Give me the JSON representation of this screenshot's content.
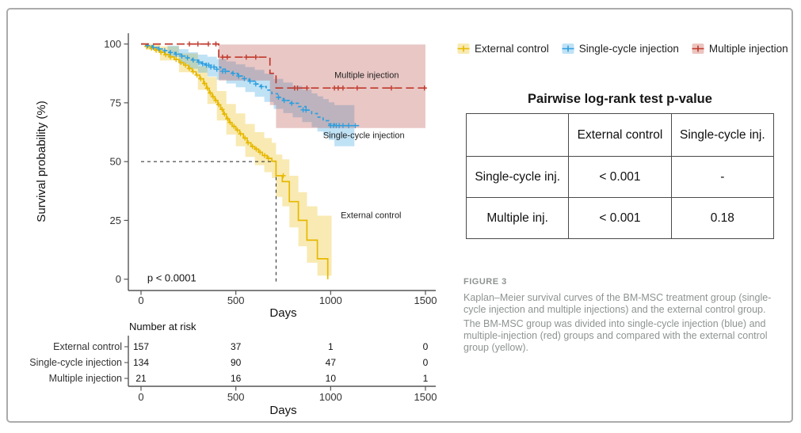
{
  "legend": {
    "items": [
      {
        "label": "External control",
        "line_color": "#E7B800",
        "fill_color": "#F8EAB2"
      },
      {
        "label": "Single-cycle injection",
        "line_color": "#2E9FDF",
        "fill_color": "#C0E2F5"
      },
      {
        "label": "Multiple injection",
        "line_color": "#C0392B",
        "fill_color": "#ECC4BF"
      }
    ]
  },
  "pvalue_table": {
    "title": "Pairwise log-rank test p-value",
    "col_headers": [
      "",
      "External control",
      "Single-cycle inj."
    ],
    "rows": [
      {
        "header": "Single-cycle inj.",
        "values": [
          "< 0.001",
          "-"
        ]
      },
      {
        "header": "Multiple inj.",
        "values": [
          "< 0.001",
          "0.18"
        ]
      }
    ]
  },
  "caption": {
    "label": "FIGURE 3",
    "paragraph1": "Kaplan–Meier survival curves of the BM-MSC treatment group (single-cycle injection and multiple injections) and the external control group.",
    "paragraph2": "The BM-MSC group was divided into single-cycle injection (blue) and multiple-injection (red) groups and compared with the external control group (yellow)."
  },
  "chart_data": {
    "type": "line",
    "subtype": "kaplan-meier-step",
    "xlabel": "Days",
    "ylabel": "Survival probability (%)",
    "xlim": [
      0,
      1560
    ],
    "ylim": [
      0,
      100
    ],
    "xticks": [
      0,
      500,
      1000,
      1500
    ],
    "yticks": [
      0,
      25,
      50,
      75,
      100
    ],
    "grid": false,
    "legend_position": "top-right-outside",
    "pvalue_annotation": {
      "text": "p < 0.0001",
      "day": 33,
      "pct": -1
    },
    "median_guides": {
      "pct": 50,
      "day": 712
    },
    "series": [
      {
        "name": "External control",
        "color": "#E7B800",
        "band_color": "rgba(231,184,0,0.30)",
        "dash": "solid",
        "steps": [
          [
            0,
            100
          ],
          [
            25,
            99
          ],
          [
            50,
            98.2
          ],
          [
            75,
            97.3
          ],
          [
            100,
            96.5
          ],
          [
            125,
            95.5
          ],
          [
            150,
            94.5
          ],
          [
            175,
            93.4
          ],
          [
            200,
            92.2
          ],
          [
            225,
            91
          ],
          [
            250,
            89.6
          ],
          [
            270,
            88.2
          ],
          [
            290,
            86.8
          ],
          [
            310,
            85.2
          ],
          [
            330,
            83.2
          ],
          [
            345,
            81.2
          ],
          [
            360,
            79.2
          ],
          [
            375,
            77.6
          ],
          [
            390,
            76
          ],
          [
            405,
            74.2
          ],
          [
            420,
            72.2
          ],
          [
            435,
            70.2
          ],
          [
            450,
            68.2
          ],
          [
            465,
            66.6
          ],
          [
            480,
            65
          ],
          [
            500,
            63.4
          ],
          [
            520,
            61.8
          ],
          [
            540,
            60
          ],
          [
            560,
            58
          ],
          [
            580,
            56.4
          ],
          [
            600,
            55.3
          ],
          [
            620,
            54
          ],
          [
            640,
            52.6
          ],
          [
            665,
            51.4
          ],
          [
            690,
            50.2
          ],
          [
            712,
            44
          ],
          [
            745,
            41.5
          ],
          [
            782,
            33
          ],
          [
            830,
            25
          ],
          [
            875,
            16.6
          ],
          [
            930,
            8.7
          ],
          [
            985,
            0
          ]
        ],
        "censors": [
          [
            30,
            99
          ],
          [
            55,
            98.2
          ],
          [
            80,
            97.3
          ],
          [
            105,
            96.5
          ],
          [
            130,
            95.5
          ],
          [
            155,
            94.5
          ],
          [
            185,
            93.4
          ],
          [
            210,
            92.2
          ],
          [
            235,
            91
          ],
          [
            255,
            89.6
          ],
          [
            275,
            88.2
          ],
          [
            295,
            86.8
          ],
          [
            315,
            85.2
          ],
          [
            335,
            83.2
          ],
          [
            350,
            81.2
          ],
          [
            365,
            79.2
          ],
          [
            380,
            77.6
          ],
          [
            395,
            76
          ],
          [
            410,
            74.2
          ],
          [
            428,
            72.2
          ],
          [
            440,
            70.2
          ],
          [
            457,
            68.2
          ],
          [
            470,
            66.6
          ],
          [
            490,
            65
          ],
          [
            508,
            63.4
          ],
          [
            525,
            61.8
          ],
          [
            548,
            60
          ],
          [
            565,
            58
          ],
          [
            588,
            56.4
          ],
          [
            608,
            55.3
          ],
          [
            628,
            54
          ],
          [
            652,
            52.6
          ],
          [
            672,
            51.4
          ],
          [
            750,
            44
          ]
        ],
        "ci": [
          [
            25,
            97.5,
            100
          ],
          [
            100,
            93,
            99
          ],
          [
            200,
            88,
            96
          ],
          [
            300,
            80.5,
            90.5
          ],
          [
            350,
            74.5,
            86
          ],
          [
            400,
            67.5,
            80
          ],
          [
            450,
            61.5,
            74.5
          ],
          [
            500,
            56.5,
            70.5
          ],
          [
            550,
            52,
            66
          ],
          [
            600,
            48.5,
            62.5
          ],
          [
            650,
            45.5,
            60
          ],
          [
            690,
            43,
            58
          ],
          [
            712,
            35,
            53
          ],
          [
            745,
            31,
            51
          ],
          [
            782,
            22,
            44
          ],
          [
            830,
            14,
            37
          ],
          [
            875,
            7,
            31
          ],
          [
            930,
            1.5,
            27
          ],
          [
            1005,
            0,
            29
          ]
        ],
        "label": {
          "text": "External control",
          "day": 1213,
          "pct": 26
        }
      },
      {
        "name": "Single-cycle injection",
        "color": "#2E9FDF",
        "band_color": "rgba(46,159,223,0.30)",
        "dash": "dotdash",
        "steps": [
          [
            0,
            100
          ],
          [
            30,
            99.3
          ],
          [
            60,
            98.6
          ],
          [
            90,
            97.9
          ],
          [
            120,
            97.2
          ],
          [
            150,
            96.4
          ],
          [
            180,
            95.7
          ],
          [
            210,
            94.9
          ],
          [
            240,
            94.1
          ],
          [
            270,
            93.2
          ],
          [
            300,
            92.3
          ],
          [
            320,
            91.6
          ],
          [
            340,
            91
          ],
          [
            380,
            90.2
          ],
          [
            420,
            89.3
          ],
          [
            450,
            88.4
          ],
          [
            480,
            87.5
          ],
          [
            510,
            86.4
          ],
          [
            540,
            85.3
          ],
          [
            570,
            84.2
          ],
          [
            600,
            83
          ],
          [
            630,
            81.9
          ],
          [
            660,
            80.4
          ],
          [
            690,
            78.9
          ],
          [
            720,
            77.3
          ],
          [
            750,
            76
          ],
          [
            790,
            74.8
          ],
          [
            830,
            73.4
          ],
          [
            870,
            71.9
          ],
          [
            900,
            70.4
          ],
          [
            930,
            68.9
          ],
          [
            960,
            67.4
          ],
          [
            990,
            66
          ],
          [
            1020,
            65.3
          ],
          [
            1150,
            65.3
          ]
        ],
        "censors": [
          [
            35,
            99.3
          ],
          [
            65,
            98.6
          ],
          [
            95,
            97.9
          ],
          [
            125,
            97.2
          ],
          [
            155,
            96.4
          ],
          [
            185,
            95.7
          ],
          [
            215,
            94.9
          ],
          [
            245,
            94.1
          ],
          [
            275,
            93.2
          ],
          [
            305,
            92.3
          ],
          [
            325,
            91.6
          ],
          [
            345,
            91
          ],
          [
            357,
            91
          ],
          [
            368,
            90.2
          ],
          [
            385,
            90.2
          ],
          [
            400,
            89.3
          ],
          [
            430,
            88.4
          ],
          [
            445,
            88.4
          ],
          [
            485,
            87.5
          ],
          [
            515,
            86.4
          ],
          [
            545,
            85.3
          ],
          [
            575,
            84.2
          ],
          [
            605,
            83
          ],
          [
            635,
            81.9
          ],
          [
            725,
            77.3
          ],
          [
            755,
            76
          ],
          [
            795,
            74.8
          ],
          [
            855,
            72
          ],
          [
            870,
            71.9
          ],
          [
            1000,
            65.3
          ],
          [
            1015,
            65.3
          ],
          [
            1030,
            65.3
          ],
          [
            1045,
            65.3
          ],
          [
            1065,
            65.3
          ],
          [
            1095,
            65.3
          ],
          [
            1130,
            65.3
          ]
        ],
        "ci": [
          [
            140,
            94.5,
            99.3
          ],
          [
            200,
            91.5,
            97.8
          ],
          [
            250,
            89.5,
            96.5
          ],
          [
            300,
            87.8,
            95.5
          ],
          [
            350,
            86.2,
            94.6
          ],
          [
            400,
            84.8,
            93.6
          ],
          [
            450,
            83.2,
            92.6
          ],
          [
            500,
            81.6,
            91.4
          ],
          [
            550,
            79.6,
            90.2
          ],
          [
            600,
            77.6,
            89
          ],
          [
            650,
            75.4,
            87.4
          ],
          [
            700,
            72.4,
            85.2
          ],
          [
            750,
            70.6,
            83.6
          ],
          [
            800,
            68.8,
            82.2
          ],
          [
            850,
            66.8,
            80.6
          ],
          [
            900,
            64.6,
            79
          ],
          [
            930,
            62.8,
            77.8
          ],
          [
            960,
            61,
            76.6
          ],
          [
            990,
            59.2,
            75.2
          ],
          [
            1020,
            56.5,
            74
          ],
          [
            1125,
            56.5,
            74
          ]
        ],
        "label": {
          "text": "Single-cycle injection",
          "day": 1175,
          "pct": 60
        }
      },
      {
        "name": "Multiple injection",
        "color": "#C0392B",
        "band_color": "rgba(183,68,63,0.30)",
        "dash": "dashed",
        "steps": [
          [
            0,
            100
          ],
          [
            410,
            94.4
          ],
          [
            680,
            87.5
          ],
          [
            712,
            81.3
          ],
          [
            1500,
            81.3
          ]
        ],
        "censors": [
          [
            255,
            100
          ],
          [
            300,
            100
          ],
          [
            355,
            100
          ],
          [
            395,
            100
          ],
          [
            430,
            94.4
          ],
          [
            455,
            94.4
          ],
          [
            555,
            94.4
          ],
          [
            605,
            94.4
          ],
          [
            810,
            81.3
          ],
          [
            825,
            81.3
          ],
          [
            875,
            81.3
          ],
          [
            1020,
            81.3
          ],
          [
            1040,
            81.3
          ],
          [
            1065,
            81.3
          ],
          [
            1140,
            81.3
          ],
          [
            1320,
            81.3
          ],
          [
            1495,
            81.3
          ]
        ],
        "ci": [
          [
            410,
            84.5,
            99.8
          ],
          [
            680,
            74,
            99.8
          ],
          [
            712,
            64.3,
            99.8
          ],
          [
            1500,
            64.3,
            99.8
          ]
        ],
        "label": {
          "text": "Multiple injection",
          "day": 1190,
          "pct": 85.5
        }
      }
    ],
    "risk_table": {
      "title": "Number at risk",
      "xlabel": "Days",
      "times": [
        0,
        500,
        1000,
        1500
      ],
      "rows": [
        {
          "name": "External control",
          "counts": [
            "157",
            "37",
            "1",
            "0"
          ]
        },
        {
          "name": "Single-cycle injection",
          "counts": [
            "134",
            "90",
            "47",
            "0"
          ]
        },
        {
          "name": "Multiple injection",
          "counts": [
            "21",
            "16",
            "10",
            "1"
          ]
        }
      ]
    }
  }
}
